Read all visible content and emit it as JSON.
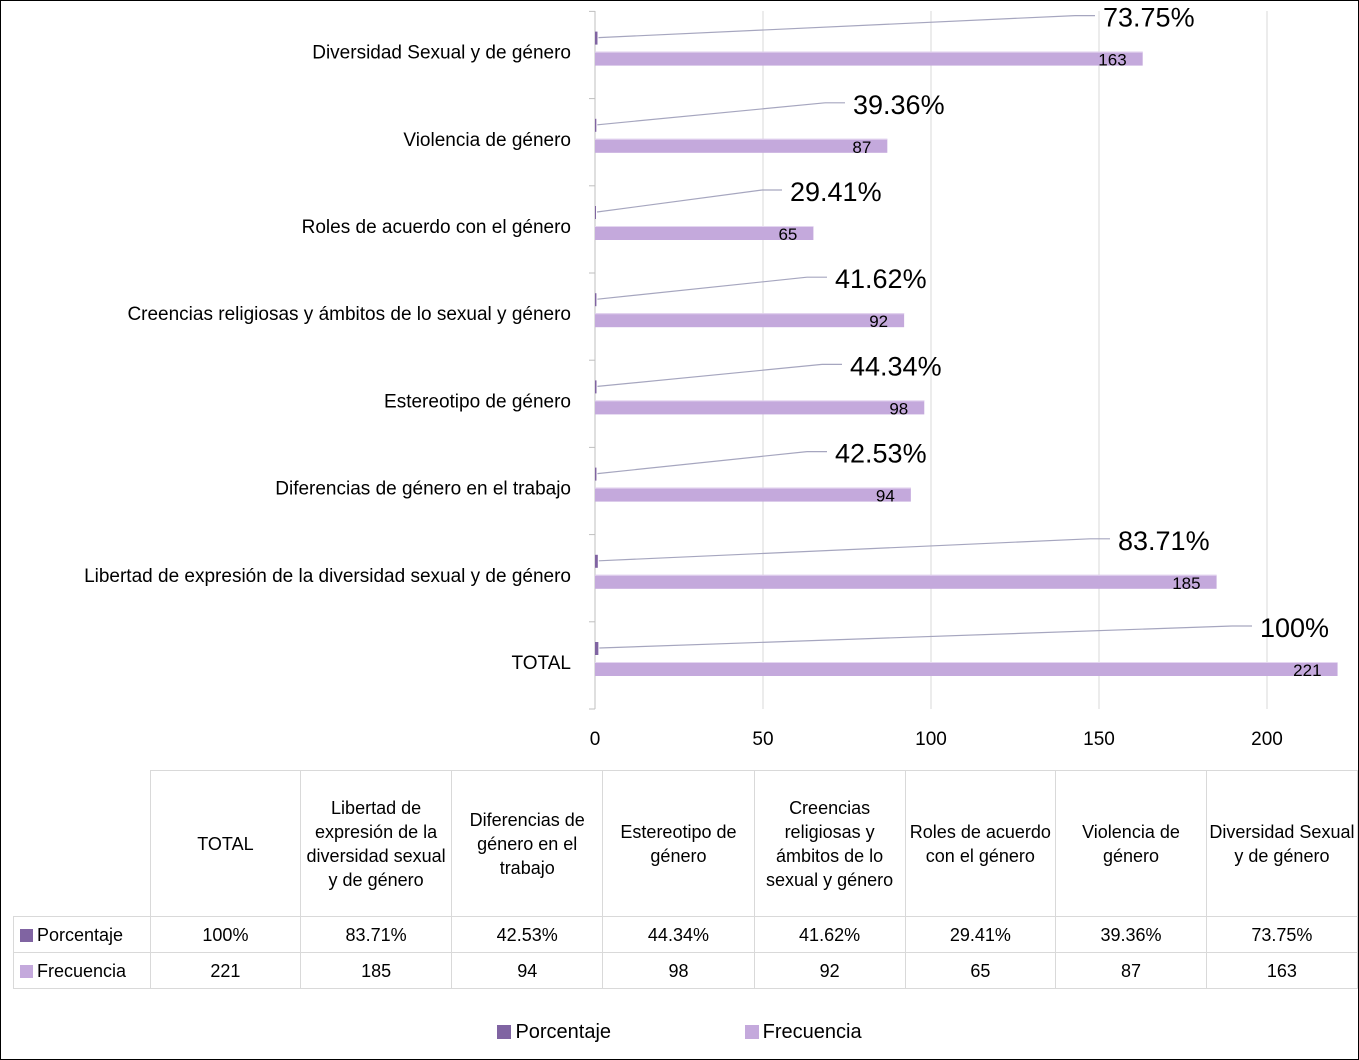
{
  "chart_data": {
    "type": "bar",
    "orientation": "horizontal",
    "categories": [
      "TOTAL",
      "Libertad de expresión de la diversidad sexual y de género",
      "Diferencias de género en el trabajo",
      "Estereotipo de género",
      "Creencias religiosas y ámbitos de lo sexual y género",
      "Roles de acuerdo con el género",
      "Violencia de género",
      "Diversidad Sexual y de género"
    ],
    "series": [
      {
        "name": "Porcentaje",
        "color": "#8064a2",
        "values": [
          1.0,
          0.8371,
          0.4253,
          0.4434,
          0.4162,
          0.2941,
          0.3936,
          0.7375
        ],
        "labels": [
          "100%",
          "83.71%",
          "42.53%",
          "44.34%",
          "41.62%",
          "29.41%",
          "39.36%",
          "73.75%"
        ]
      },
      {
        "name": "Frecuencia",
        "color": "#c4a9dc",
        "values": [
          221,
          185,
          94,
          98,
          92,
          65,
          87,
          163
        ],
        "labels": [
          "221",
          "185",
          "94",
          "98",
          "92",
          "65",
          "87",
          "163"
        ]
      }
    ],
    "xticks": [
      "0",
      "50",
      "100",
      "150",
      "200"
    ],
    "xlim": [
      0,
      220
    ],
    "grid": "vertical",
    "legend": "bottom",
    "table_headers": [
      "TOTAL",
      "Libertad de expresión de la diversidad sexual y de género",
      "Diferencias de género en el trabajo",
      "Estereotipo de género",
      "Creencias religiosas y ámbitos de lo sexual y género",
      "Roles de acuerdo con el género",
      "Violencia de género",
      "Diversidad Sexual y de género"
    ],
    "title": "",
    "xlabel": "",
    "ylabel": ""
  }
}
